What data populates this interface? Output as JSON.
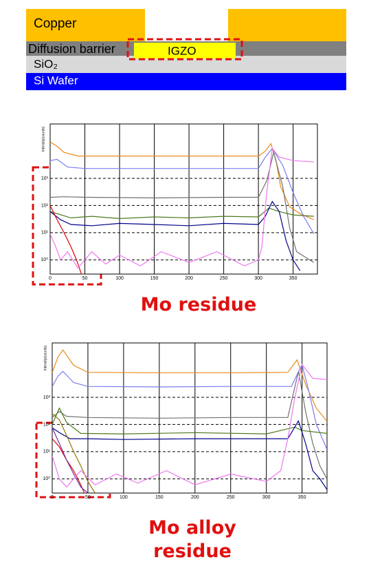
{
  "diagram": {
    "layers": [
      "Copper",
      "Diffusion barrier",
      "IGZO",
      "SiO₂",
      "Si Wafer"
    ]
  },
  "chart_data": [
    {
      "type": "line",
      "caption": "Mo residue",
      "ylabel": "Intensity(counts)",
      "log_y": true,
      "grid": true,
      "xlim": [
        0,
        385
      ],
      "xticks": [
        0,
        50,
        100,
        150,
        200,
        250,
        300,
        350
      ],
      "ylim": [
        0.3,
        100000
      ],
      "yticks": [
        {
          "value": 1,
          "label": "10⁰"
        },
        {
          "value": 10,
          "label": "10¹"
        },
        {
          "value": 100,
          "label": "10²"
        },
        {
          "value": 1000,
          "label": "10³"
        }
      ],
      "series": [
        {
          "color": "#e8891a",
          "x": [
            0,
            10,
            20,
            40,
            100,
            200,
            300,
            310,
            318,
            325,
            332,
            345,
            360,
            380
          ],
          "values": [
            22000,
            15000,
            9000,
            6600,
            6600,
            6600,
            6600,
            10000,
            19000,
            5000,
            500,
            90,
            50,
            30
          ]
        },
        {
          "color": "#7b7bf0",
          "x": [
            0,
            10,
            25,
            50,
            150,
            250,
            300,
            310,
            320,
            335,
            350,
            365,
            380
          ],
          "values": [
            4500,
            5000,
            2600,
            2300,
            2300,
            2300,
            2300,
            6000,
            12600,
            3000,
            300,
            40,
            9
          ]
        },
        {
          "color": "#707070",
          "x": [
            0,
            20,
            50,
            150,
            250,
            300,
            312,
            322,
            335,
            345,
            355,
            380
          ],
          "values": [
            200,
            210,
            200,
            190,
            200,
            200,
            800,
            9000,
            500,
            15,
            2,
            0.8
          ]
        },
        {
          "color": "#4d7a1e",
          "x": [
            0,
            30,
            60,
            100,
            150,
            200,
            250,
            300,
            315,
            330,
            350,
            380
          ],
          "values": [
            60,
            35,
            40,
            33,
            38,
            35,
            40,
            38,
            80,
            60,
            45,
            40
          ]
        },
        {
          "color": "#00008b",
          "x": [
            0,
            15,
            30,
            60,
            100,
            150,
            200,
            250,
            300,
            310,
            320,
            330,
            340,
            350,
            360
          ],
          "values": [
            60,
            30,
            20,
            18,
            22,
            20,
            18,
            22,
            20,
            40,
            140,
            60,
            5,
            1,
            0.4
          ]
        },
        {
          "color": "#e00000",
          "x": [
            0,
            10,
            20,
            30,
            38,
            45
          ],
          "values": [
            100,
            30,
            10,
            3,
            1,
            0.3
          ]
        },
        {
          "color": "#ee77ee",
          "x": [
            0,
            8,
            15,
            25,
            40,
            60,
            80,
            100,
            130,
            160,
            200,
            240,
            280,
            300,
            305,
            312,
            320,
            330,
            350,
            380
          ],
          "values": [
            9,
            3,
            1,
            2,
            0.5,
            2,
            0.7,
            1.5,
            0.6,
            2,
            0.8,
            2,
            0.6,
            1,
            3,
            300,
            12600,
            6000,
            4500,
            4000
          ]
        }
      ]
    },
    {
      "type": "line",
      "caption": "Mo alloy residue",
      "ylabel": "Intensity(counts)",
      "log_y": true,
      "grid": true,
      "xlim": [
        0,
        385
      ],
      "xticks": [
        0,
        50,
        100,
        150,
        200,
        250,
        300,
        350
      ],
      "ylim": [
        0.3,
        100000
      ],
      "yticks": [
        {
          "value": 1,
          "label": "10⁰"
        },
        {
          "value": 10,
          "label": "10¹"
        },
        {
          "value": 100,
          "label": "10²"
        },
        {
          "value": 1000,
          "label": "10³"
        }
      ],
      "series": [
        {
          "color": "#e8891a",
          "x": [
            0,
            8,
            15,
            30,
            50,
            150,
            250,
            330,
            343,
            355,
            370,
            385
          ],
          "values": [
            8300,
            30000,
            55000,
            15000,
            8300,
            8000,
            8000,
            8300,
            24000,
            3000,
            400,
            130
          ]
        },
        {
          "color": "#7b7bf0",
          "x": [
            0,
            8,
            15,
            30,
            50,
            150,
            250,
            335,
            350,
            360,
            370,
            385
          ],
          "values": [
            2500,
            6000,
            9000,
            3500,
            2500,
            2400,
            2500,
            2500,
            16000,
            1500,
            100,
            12
          ]
        },
        {
          "color": "#707070",
          "x": [
            0,
            10,
            20,
            50,
            150,
            250,
            330,
            345,
            355,
            365,
            375,
            385
          ],
          "values": [
            180,
            300,
            200,
            180,
            170,
            180,
            180,
            9000,
            300,
            20,
            3,
            1
          ]
        },
        {
          "color": "#4d7a1e",
          "x": [
            0,
            10,
            20,
            40,
            100,
            200,
            300,
            340,
            350,
            385
          ],
          "values": [
            100,
            400,
            120,
            47,
            45,
            50,
            45,
            80,
            60,
            47
          ]
        },
        {
          "color": "#00008b",
          "x": [
            0,
            10,
            25,
            50,
            100,
            200,
            300,
            330,
            345,
            355,
            365,
            375,
            385
          ],
          "values": [
            75,
            50,
            30,
            30,
            28,
            30,
            30,
            30,
            135,
            20,
            2,
            1,
            0.4
          ]
        },
        {
          "color": "#e00000",
          "x": [
            0,
            10,
            20,
            30,
            40,
            45
          ],
          "values": [
            30,
            15,
            5,
            2,
            0.6,
            0.3
          ]
        },
        {
          "color": "#7030a0",
          "x": [
            0,
            10,
            20,
            30,
            40,
            50
          ],
          "values": [
            75,
            20,
            5,
            1.5,
            0.5,
            0.3
          ]
        },
        {
          "color": "#8a7a00",
          "x": [
            0,
            10,
            20,
            30,
            40,
            50,
            60
          ],
          "values": [
            250,
            150,
            40,
            10,
            3,
            0.8,
            0.3
          ]
        },
        {
          "color": "#ee77ee",
          "x": [
            0,
            10,
            20,
            40,
            60,
            90,
            120,
            160,
            200,
            250,
            300,
            320,
            330,
            340,
            350,
            365,
            385
          ],
          "values": [
            7,
            1,
            0.5,
            2,
            0.6,
            1.5,
            0.7,
            2,
            0.6,
            1.5,
            0.8,
            2,
            30,
            1000,
            16000,
            5000,
            4500
          ]
        }
      ]
    }
  ]
}
